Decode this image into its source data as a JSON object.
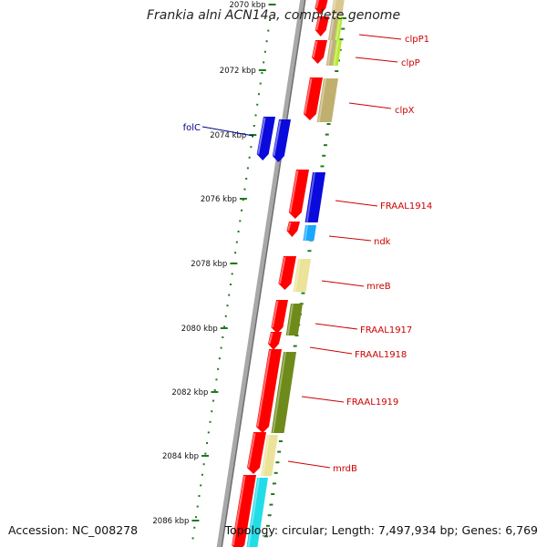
{
  "title": "Frankia alni ACN14a, complete genome",
  "footer": {
    "accession": "Accession: NC_008278",
    "summary": "Topology: circular; Length: 7,497,934 bp; Genes: 6,769"
  },
  "ruler_ticks": [
    "2070 kbp",
    "2072 kbp",
    "2074 kbp",
    "2076 kbp",
    "2078 kbp",
    "2080 kbp",
    "2082 kbp",
    "2084 kbp",
    "2086 kbp"
  ],
  "gene_labels": [
    {
      "name": "clpP1",
      "color": "#cc0000"
    },
    {
      "name": "clpP",
      "color": "#cc0000"
    },
    {
      "name": "clpX",
      "color": "#cc0000"
    },
    {
      "name": "folC",
      "color": "#00008b"
    },
    {
      "name": "FRAAL1914",
      "color": "#cc0000"
    },
    {
      "name": "ndk",
      "color": "#cc0000"
    },
    {
      "name": "mreB",
      "color": "#cc0000"
    },
    {
      "name": "FRAAL1917",
      "color": "#cc0000"
    },
    {
      "name": "FRAAL1918",
      "color": "#cc0000"
    },
    {
      "name": "FRAAL1919",
      "color": "#cc0000"
    },
    {
      "name": "mrdB",
      "color": "#cc0000"
    }
  ],
  "colors": {
    "backbone": "#909090",
    "cds": "#ff0000",
    "tick": "#1e7a1e",
    "label_line": "#cc0000"
  }
}
